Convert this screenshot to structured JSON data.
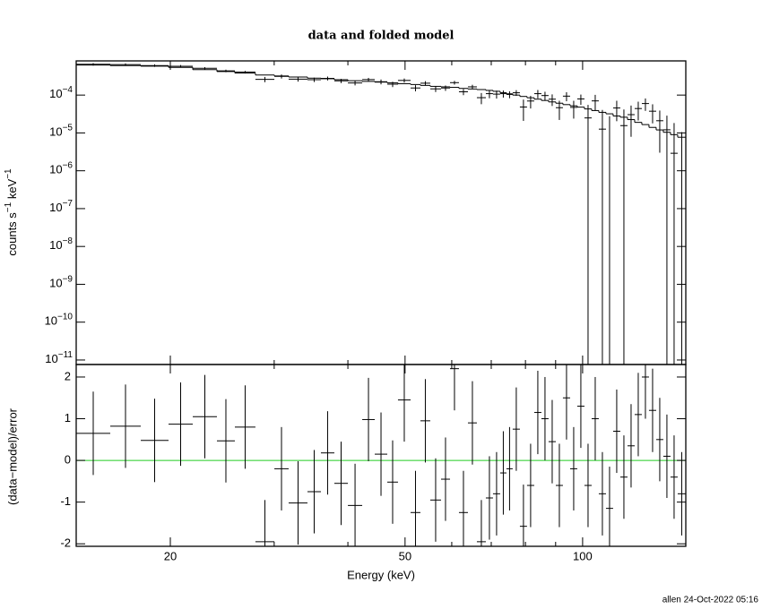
{
  "chart_data": {
    "type": "spectrum",
    "title": "data and folded model",
    "xlabel": "Energy (keV)",
    "footer": "allen 24-Oct-2022 05:16",
    "log_x": true,
    "xlim": [
      13.85,
      149.6
    ],
    "xticks": [
      20,
      50,
      100
    ],
    "xminor": [
      30,
      40,
      60,
      70,
      80,
      90
    ],
    "bins": [
      13.85,
      15.82,
      17.82,
      19.86,
      21.83,
      23.99,
      25.73,
      27.88,
      30.02,
      31.74,
      34.16,
      36.0,
      37.94,
      40.0,
      42.3,
      44.42,
      46.65,
      48.64,
      51.09,
      53.09,
      55.17,
      57.54,
      59.59,
      61.71,
      63.91,
      66.18,
      68.54,
      70.48,
      72.48,
      74.28,
      76.11,
      78.28,
      80.49,
      82.79,
      85.14,
      87.56,
      90.06,
      92.6,
      95.24,
      97.93,
      100.72,
      103.59,
      106.52,
      109.55,
      112.65,
      115.85,
      119.15,
      122.53,
      126.01,
      129.58,
      133.27,
      137.03,
      140.93,
      144.94,
      149.58
    ],
    "top": {
      "ylabel": [
        "counts s",
        "−1",
        " keV",
        "−1"
      ],
      "log_y": true,
      "ylim": [
        7.6e-12,
        0.0008
      ],
      "yticks": [
        {
          "value": 0.0001,
          "label": "10",
          "exponent": "−4"
        },
        {
          "value": 1e-05,
          "label": "10",
          "exponent": "−5"
        },
        {
          "value": 1e-06,
          "label": "10",
          "exponent": "−6"
        },
        {
          "value": 1e-07,
          "label": "10",
          "exponent": "−7"
        },
        {
          "value": 1e-08,
          "label": "10",
          "exponent": "−8"
        },
        {
          "value": 1e-09,
          "label": "10",
          "exponent": "−9"
        },
        {
          "value": 1e-10,
          "label": "10",
          "exponent": "−10"
        },
        {
          "value": 1e-11,
          "label": "10",
          "exponent": "−11"
        }
      ],
      "color": "#000000",
      "values": [
        0.00065,
        0.000639,
        0.000602,
        0.000578,
        0.000509,
        0.000436,
        0.000404,
        0.00026,
        0.000312,
        0.000263,
        0.000255,
        0.000276,
        0.000238,
        0.000209,
        0.000257,
        0.000225,
        0.000194,
        0.000244,
        0.000154,
        0.000206,
        0.000146,
        0.000154,
        0.000213,
        0.000122,
        0.000165,
        8.54e-05,
        0.000109,
        0.000106,
        0.000109,
        0.000104,
        0.000115,
        4.84e-05,
        6.97e-05,
        0.000109,
        9.72e-05,
        7.79e-05,
        4.64e-05,
        9.38e-05,
        4.73e-05,
        7.92e-05,
        2.49e-05,
        7.02e-05,
        1.26e-05,
        -1.1e-06,
        4.56e-05,
        1.56e-05,
        3.04e-05,
        4.41e-05,
        5.98e-05,
        3.75e-05,
        2.1e-05,
        1.21e-05,
        2.9e-06,
        -3.4e-06
      ],
      "errors": [
        5e-05,
        4.8e-05,
        4.64e-05,
        4.32e-05,
        3.76e-05,
        3.36e-05,
        3.04e-05,
        4.08e-05,
        3.84e-05,
        3.6e-05,
        3.36e-05,
        3.24e-05,
        3.06e-05,
        2.88e-05,
        2.76e-05,
        3.3e-05,
        3.15e-05,
        3e-05,
        2.85e-05,
        2.7e-05,
        2.55e-05,
        2.48e-05,
        2.4e-05,
        2.25e-05,
        2.18e-05,
        2.8e-05,
        2.66e-05,
        2.52e-05,
        2.32e-05,
        2.16e-05,
        2e-05,
        2.76e-05,
        2.55e-05,
        2.73e-05,
        2.52e-05,
        2.64e-05,
        2.44e-05,
        2.52e-05,
        2.34e-05,
        2.4e-05,
        3.01e-05,
        3.12e-05,
        2.8e-05,
        2.88e-05,
        2.52e-05,
        2.6e-05,
        2.25e-05,
        2.28e-05,
        2.16e-05,
        1.96e-05,
        1.8e-05,
        1.66e-05,
        1.53e-05,
        1.39e-05
      ],
      "model": [
        0.00062,
        0.0006,
        0.00058,
        0.00054,
        0.00047,
        0.00042,
        0.00038,
        0.00034,
        0.00032,
        0.0003,
        0.00028,
        0.00027,
        0.000255,
        0.00024,
        0.00023,
        0.00022,
        0.00021,
        0.0002,
        0.00019,
        0.00018,
        0.00017,
        0.000165,
        0.00016,
        0.00015,
        0.000145,
        0.00014,
        0.000133,
        0.000126,
        0.000116,
        0.000108,
        0.0001,
        9.2e-05,
        8.5e-05,
        7.8e-05,
        7.2e-05,
        6.6e-05,
        6.1e-05,
        5.6e-05,
        5.2e-05,
        4.8e-05,
        4.3e-05,
        3.9e-05,
        3.5e-05,
        3.2e-05,
        2.8e-05,
        2.6e-05,
        2.25e-05,
        1.9e-05,
        1.66e-05,
        1.4e-05,
        1.2e-05,
        1.04e-05,
        9e-06,
        7.7e-06
      ],
      "model_color": "#000000"
    },
    "bottom": {
      "ylabel": "(data−model)/error",
      "log_y": false,
      "ylim": [
        -2.06,
        2.3
      ],
      "yticks": [
        -2,
        -1,
        0,
        1,
        2
      ],
      "color": "#000000",
      "values": [
        0.65,
        0.82,
        0.48,
        0.87,
        1.05,
        0.47,
        0.8,
        -1.95,
        -0.2,
        -1.02,
        -0.75,
        0.18,
        -0.55,
        -1.08,
        0.98,
        0.15,
        -0.52,
        1.45,
        -1.25,
        0.95,
        -0.95,
        -0.45,
        2.2,
        -1.25,
        0.9,
        -1.95,
        -0.9,
        -0.8,
        -0.3,
        -0.2,
        0.75,
        -1.58,
        -0.6,
        1.15,
        1.0,
        0.45,
        -0.6,
        1.5,
        -0.2,
        1.3,
        -0.6,
        1.0,
        -0.8,
        -1.15,
        0.7,
        -0.4,
        0.35,
        1.1,
        2.0,
        1.2,
        0.5,
        0.1,
        -0.4,
        -0.8
      ],
      "errors": [
        1,
        1,
        1,
        1,
        1,
        1,
        1,
        1,
        1,
        1,
        1,
        1,
        1,
        1,
        1,
        1,
        1,
        1,
        1,
        1,
        1,
        1,
        1,
        1,
        1,
        1,
        1,
        1,
        1,
        1,
        1,
        1,
        1,
        1,
        1,
        1,
        1,
        1,
        1,
        1,
        1,
        1,
        1,
        1,
        1,
        1,
        1,
        1,
        1,
        1,
        1,
        1,
        1,
        1
      ],
      "reference": {
        "value": 0,
        "color": "#22cc22"
      }
    }
  }
}
